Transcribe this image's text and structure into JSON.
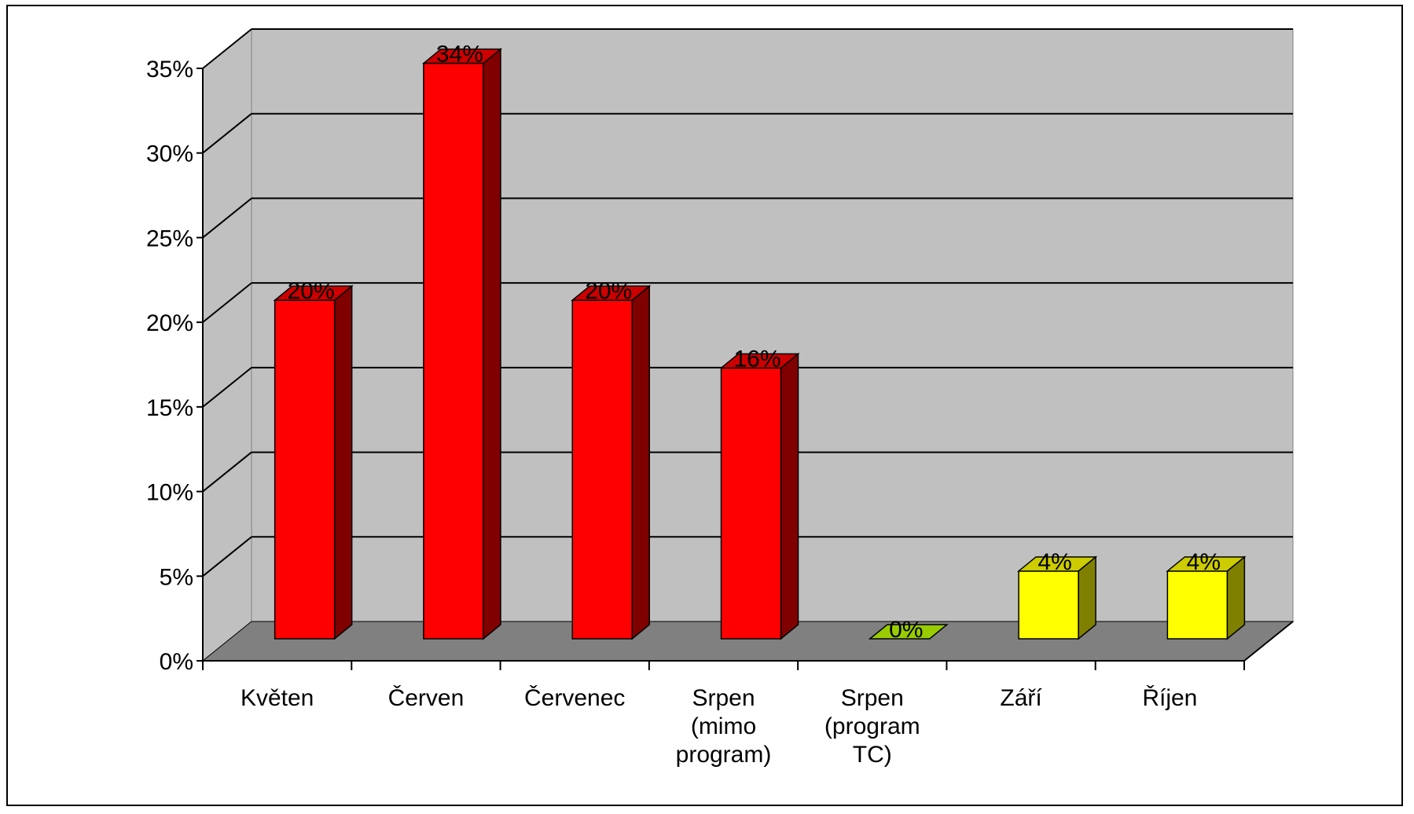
{
  "chart_data": {
    "type": "bar",
    "style": "3d-clustered-column",
    "categories": [
      [
        "Květen"
      ],
      [
        "Červen"
      ],
      [
        "Červenec"
      ],
      [
        "Srpen",
        "(mimo",
        "program)"
      ],
      [
        "Srpen",
        "(program",
        "TC)"
      ],
      [
        "Září"
      ],
      [
        "Říjen"
      ]
    ],
    "values": [
      20,
      34,
      20,
      16,
      0,
      4,
      4
    ],
    "data_labels": [
      "20%",
      "34%",
      "20%",
      "16%",
      "0%",
      "4%",
      "4%"
    ],
    "bar_colors": [
      "#ff0000",
      "#ff0000",
      "#ff0000",
      "#ff0000",
      "#99cc00",
      "#ffff00",
      "#ffff00"
    ],
    "bar_side_colors": [
      "#800000",
      "#800000",
      "#800000",
      "#800000",
      "#5c7a00",
      "#808000",
      "#808000"
    ],
    "ylim": [
      0,
      35
    ],
    "yticks": [
      0,
      5,
      10,
      15,
      20,
      25,
      30,
      35
    ],
    "ytick_labels": [
      "0%",
      "5%",
      "10%",
      "15%",
      "20%",
      "25%",
      "30%",
      "35%"
    ],
    "grid": true,
    "legend": "none",
    "wall_color": "#c0c0c0",
    "floor_color": "#808080",
    "title": "",
    "xlabel": "",
    "ylabel": ""
  }
}
